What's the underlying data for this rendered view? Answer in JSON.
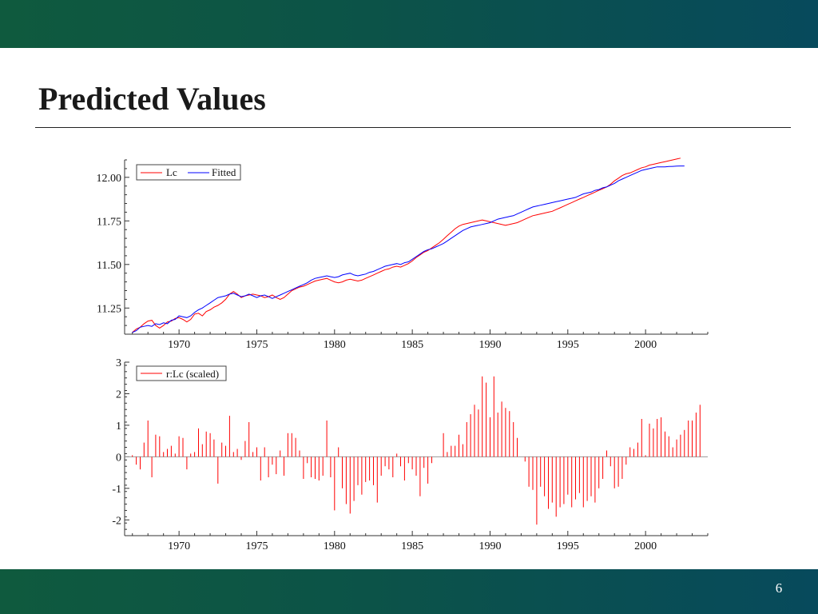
{
  "slide": {
    "title": "Predicted Values",
    "page_number": "6"
  },
  "colors": {
    "band": "#0c5348",
    "actual": "#ff0000",
    "fitted": "#0000ff",
    "residual": "#ff0000"
  },
  "chart_data": [
    {
      "type": "line",
      "title": "",
      "xlabel": "",
      "ylabel": "",
      "xlim": [
        1966.5,
        2004.0
      ],
      "ylim": [
        11.1,
        12.1
      ],
      "x_ticks": [
        1970,
        1975,
        1980,
        1985,
        1990,
        1995,
        2000
      ],
      "x_tick_labels": [
        "1970",
        "1975",
        "1980",
        "1985",
        "1990",
        "1995",
        "2000"
      ],
      "y_ticks": [
        11.25,
        11.5,
        11.75,
        12.0
      ],
      "y_tick_labels": [
        "11.25",
        "11.50",
        "11.75",
        "12.00"
      ],
      "grid": false,
      "legend": {
        "position": "top-left"
      },
      "frequency": "quarterly",
      "x_start": 1967.0,
      "series": [
        {
          "name": "Lc",
          "values": [
            11.11,
            11.13,
            11.14,
            11.16,
            11.175,
            11.18,
            11.15,
            11.135,
            11.15,
            11.17,
            11.175,
            11.19,
            11.195,
            11.185,
            11.17,
            11.185,
            11.215,
            11.22,
            11.205,
            11.23,
            11.24,
            11.255,
            11.265,
            11.28,
            11.3,
            11.33,
            11.345,
            11.33,
            11.31,
            11.32,
            11.325,
            11.33,
            11.325,
            11.32,
            11.31,
            11.315,
            11.325,
            11.31,
            11.3,
            11.31,
            11.33,
            11.35,
            11.36,
            11.37,
            11.375,
            11.385,
            11.395,
            11.405,
            11.41,
            11.415,
            11.42,
            11.41,
            11.4,
            11.395,
            11.4,
            11.41,
            11.415,
            11.41,
            11.405,
            11.41,
            11.42,
            11.43,
            11.44,
            11.45,
            11.46,
            11.47,
            11.475,
            11.485,
            11.49,
            11.485,
            11.495,
            11.505,
            11.52,
            11.54,
            11.555,
            11.57,
            11.58,
            11.595,
            11.61,
            11.625,
            11.645,
            11.665,
            11.685,
            11.705,
            11.72,
            11.73,
            11.735,
            11.74,
            11.745,
            11.75,
            11.755,
            11.75,
            11.745,
            11.74,
            11.735,
            11.73,
            11.725,
            11.73,
            11.735,
            11.74,
            11.75,
            11.76,
            11.77,
            11.78,
            11.785,
            11.79,
            11.795,
            11.8,
            11.805,
            11.815,
            11.825,
            11.835,
            11.845,
            11.855,
            11.865,
            11.875,
            11.885,
            11.895,
            11.905,
            11.915,
            11.925,
            11.935,
            11.945,
            11.96,
            11.98,
            11.995,
            12.01,
            12.02,
            12.025,
            12.035,
            12.045,
            12.055,
            12.06,
            12.07,
            12.075,
            12.08,
            12.085,
            12.09,
            12.095,
            12.1,
            12.105,
            12.11
          ]
        },
        {
          "name": "Fitted",
          "values": [
            11.11,
            11.12,
            11.14,
            11.145,
            11.15,
            11.145,
            11.16,
            11.155,
            11.165,
            11.16,
            11.18,
            11.185,
            11.205,
            11.2,
            11.195,
            11.205,
            11.225,
            11.24,
            11.25,
            11.265,
            11.28,
            11.295,
            11.31,
            11.315,
            11.32,
            11.33,
            11.335,
            11.325,
            11.315,
            11.32,
            11.33,
            11.32,
            11.31,
            11.32,
            11.325,
            11.315,
            11.305,
            11.315,
            11.325,
            11.335,
            11.345,
            11.355,
            11.365,
            11.375,
            11.385,
            11.395,
            11.41,
            11.42,
            11.425,
            11.43,
            11.435,
            11.43,
            11.425,
            11.43,
            11.44,
            11.445,
            11.45,
            11.44,
            11.435,
            11.44,
            11.445,
            11.455,
            11.46,
            11.47,
            11.48,
            11.49,
            11.495,
            11.5,
            11.505,
            11.5,
            11.51,
            11.515,
            11.53,
            11.545,
            11.56,
            11.575,
            11.585,
            11.59,
            11.6,
            11.61,
            11.62,
            11.635,
            11.65,
            11.665,
            11.68,
            11.695,
            11.705,
            11.715,
            11.72,
            11.725,
            11.73,
            11.735,
            11.74,
            11.75,
            11.76,
            11.765,
            11.77,
            11.775,
            11.78,
            11.79,
            11.8,
            11.81,
            11.82,
            11.83,
            11.835,
            11.84,
            11.845,
            11.85,
            11.855,
            11.86,
            11.865,
            11.87,
            11.875,
            11.88,
            11.885,
            11.895,
            11.905,
            11.91,
            11.915,
            11.925,
            11.93,
            11.94,
            11.945,
            11.955,
            11.965,
            11.98,
            11.99,
            12.0,
            12.01,
            12.02,
            12.03,
            12.04,
            12.045,
            12.05,
            12.055,
            12.06,
            12.06,
            12.06,
            12.062,
            12.063,
            12.064,
            12.065,
            12.065
          ]
        }
      ]
    },
    {
      "type": "bar",
      "title": "",
      "xlabel": "",
      "ylabel": "",
      "xlim": [
        1966.5,
        2004.0
      ],
      "ylim": [
        -2.5,
        3.0
      ],
      "x_ticks": [
        1970,
        1975,
        1980,
        1985,
        1990,
        1995,
        2000
      ],
      "x_tick_labels": [
        "1970",
        "1975",
        "1980",
        "1985",
        "1990",
        "1995",
        "2000"
      ],
      "y_ticks": [
        -2,
        -1,
        0,
        1,
        2,
        3
      ],
      "y_tick_labels": [
        "-2",
        "-1",
        "0",
        "1",
        "2",
        "3"
      ],
      "grid": false,
      "legend": {
        "position": "top-left"
      },
      "frequency": "quarterly",
      "x_start": 1967.0,
      "series": [
        {
          "name": "r:Lc (scaled)",
          "values": [
            0.05,
            -0.25,
            -0.4,
            0.45,
            1.15,
            -0.65,
            0.7,
            0.65,
            0.15,
            0.25,
            0.35,
            0.1,
            0.65,
            0.6,
            -0.4,
            0.1,
            0.15,
            0.9,
            0.4,
            0.8,
            0.75,
            0.55,
            -0.85,
            0.45,
            0.35,
            1.3,
            0.15,
            0.25,
            -0.1,
            0.5,
            1.1,
            0.15,
            0.3,
            -0.75,
            0.3,
            -0.65,
            -0.25,
            -0.55,
            0.2,
            -0.6,
            0.75,
            0.75,
            0.6,
            0.2,
            -0.7,
            -0.2,
            -0.65,
            -0.7,
            -0.75,
            -0.6,
            1.15,
            -0.65,
            -1.7,
            0.3,
            -1.0,
            -1.5,
            -1.8,
            -1.4,
            -0.9,
            -1.2,
            -0.8,
            -0.75,
            -0.9,
            -1.45,
            -0.6,
            -0.3,
            -0.4,
            -0.65,
            0.1,
            -0.3,
            -0.75,
            -0.2,
            -0.4,
            -0.6,
            -1.25,
            -0.35,
            -0.85,
            -0.2,
            0.0,
            0.0,
            0.75,
            0.15,
            0.35,
            0.35,
            0.7,
            0.4,
            1.1,
            1.35,
            1.65,
            1.5,
            2.55,
            2.35,
            1.25,
            2.55,
            1.4,
            1.75,
            1.55,
            1.45,
            1.1,
            0.6,
            0.0,
            -0.15,
            -0.95,
            -1.05,
            -2.15,
            -0.95,
            -1.25,
            -1.65,
            -1.45,
            -1.9,
            -1.6,
            -1.5,
            -1.2,
            -1.6,
            -1.35,
            -1.15,
            -1.6,
            -1.4,
            -1.25,
            -1.45,
            -1.0,
            -0.7,
            0.2,
            -0.3,
            -1.0,
            -0.95,
            -0.7,
            -0.25,
            0.3,
            0.25,
            0.45,
            1.2,
            0.05,
            1.05,
            0.9,
            1.2,
            1.25,
            0.8,
            0.65,
            0.3,
            0.55,
            0.7,
            0.85,
            1.15,
            1.15,
            1.4,
            1.65
          ]
        }
      ]
    }
  ]
}
